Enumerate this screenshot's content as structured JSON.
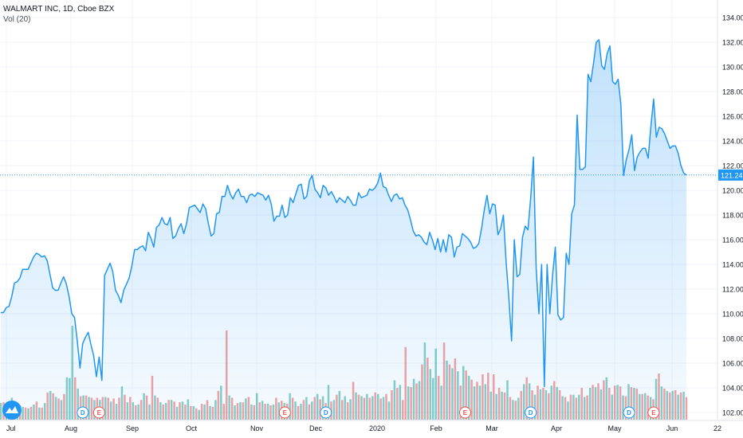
{
  "header": {
    "symbol_line": "WALMART INC, 1D, Cboe BZX",
    "volume_label": "Vol (20)"
  },
  "colors": {
    "line": "#2196f3",
    "area": "#2196f3",
    "vol_up": "#26a69a",
    "vol_down": "#ef5350",
    "grid": "#f0f3fa"
  },
  "chart_data": {
    "type": "area",
    "title": "",
    "ylim": [
      101,
      135
    ],
    "y_ticks": [
      "102.00",
      "104.00",
      "106.00",
      "108.00",
      "110.00",
      "112.00",
      "114.00",
      "116.00",
      "118.00",
      "120.00",
      "122.00",
      "124.00",
      "126.00",
      "128.00",
      "130.00",
      "132.00",
      "134.00"
    ],
    "x_ticks": [
      "Jul",
      "Aug",
      "Sep",
      "Oct",
      "Nov",
      "Dec",
      "2020",
      "Feb",
      "Mar",
      "Apr",
      "May",
      "Jun",
      "22"
    ],
    "last_price": "121.24",
    "price_series": [
      110.1,
      110.1,
      110.5,
      110.6,
      111.4,
      112.5,
      112.6,
      112.9,
      113.6,
      113.6,
      113.6,
      114.1,
      114.6,
      114.9,
      114.8,
      114.6,
      114.7,
      114.3,
      113.2,
      112.1,
      111.9,
      111.9,
      112.5,
      113.0,
      112.4,
      111.4,
      110.0,
      109.7,
      107.8,
      105.6,
      107.6,
      108.1,
      108.5,
      107.5,
      106.6,
      104.9,
      106.5,
      104.6,
      113.1,
      113.6,
      114.1,
      113.4,
      111.9,
      111.5,
      110.9,
      111.9,
      112.4,
      112.9,
      113.9,
      115.2,
      115.2,
      115.4,
      115.5,
      115.1,
      116.6,
      116.1,
      115.4,
      117.0,
      117.2,
      117.8,
      117.3,
      117.2,
      117.8,
      116.1,
      116.3,
      116.9,
      117.3,
      116.5,
      117.3,
      118.6,
      118.7,
      118.8,
      118.5,
      118.2,
      118.9,
      118.5,
      117.3,
      116.3,
      116.5,
      118.1,
      118.2,
      119.5,
      119.5,
      120.4,
      119.7,
      119.3,
      119.8,
      120.1,
      119.5,
      119.5,
      119.0,
      119.6,
      119.7,
      119.5,
      119.8,
      119.7,
      119.6,
      119.2,
      119.6,
      118.9,
      117.5,
      117.9,
      117.9,
      118.8,
      117.8,
      118.0,
      119.4,
      119.0,
      119.7,
      120.4,
      120.5,
      119.3,
      119.5,
      120.8,
      121.2,
      120.1,
      119.8,
      119.4,
      120.4,
      120.2,
      119.6,
      119.9,
      119.5,
      119.0,
      119.4,
      119.2,
      119.0,
      119.5,
      119.2,
      118.8,
      118.8,
      119.8,
      119.4,
      119.5,
      119.6,
      120.1,
      120.0,
      120.2,
      120.6,
      121.4,
      120.3,
      120.2,
      119.6,
      119.1,
      119.6,
      119.7,
      119.3,
      119.4,
      118.8,
      118.4,
      117.6,
      116.7,
      116.3,
      116.4,
      116.2,
      115.8,
      115.6,
      116.6,
      116.0,
      115.2,
      116.1,
      115.0,
      116.0,
      115.0,
      116.4,
      116.2,
      114.6,
      115.4,
      115.5,
      116.5,
      116.3,
      116.1,
      115.8,
      115.3,
      115.4,
      115.7,
      116.9,
      118.4,
      119.6,
      118.1,
      118.9,
      118.8,
      116.4,
      116.9,
      118.0,
      114.2,
      111.3,
      107.8,
      116.0,
      113.0,
      113.2,
      116.2,
      117.1,
      116.8,
      119.4,
      122.7,
      113.7,
      110.0,
      114.0,
      104.1,
      114.0,
      110.0,
      113.1,
      115.4,
      109.9,
      109.5,
      109.7,
      114.9,
      114.0,
      118.1,
      118.8,
      126.1,
      121.7,
      121.7,
      121.9,
      129.4,
      128.8,
      130.3,
      132.0,
      132.2,
      130.1,
      129.8,
      131.1,
      131.7,
      128.8,
      128.6,
      129.0,
      127.0,
      121.2,
      122.5,
      123.3,
      124.5,
      121.6,
      122.7,
      123.1,
      123.4,
      123.4,
      122.6,
      125.2,
      127.4,
      124.3,
      125.1,
      125.0,
      124.6,
      124.0,
      123.4,
      123.6,
      123.6,
      123.0,
      122.0,
      121.4,
      121.24
    ],
    "volume_series": [
      {
        "v": 2.2,
        "up": true
      },
      {
        "v": 2.3,
        "up": false
      },
      {
        "v": 2.0,
        "up": true
      },
      {
        "v": 2.1,
        "up": false
      },
      {
        "v": 2.9,
        "up": true
      },
      {
        "v": 2.4,
        "up": false
      },
      {
        "v": 1.9,
        "up": true
      },
      {
        "v": 1.9,
        "up": false
      },
      {
        "v": 1.7,
        "up": true
      },
      {
        "v": 1.6,
        "up": false
      },
      {
        "v": 1.5,
        "up": true
      },
      {
        "v": 1.7,
        "up": false
      },
      {
        "v": 2.0,
        "up": true
      },
      {
        "v": 2.4,
        "up": false
      },
      {
        "v": 1.6,
        "up": true
      },
      {
        "v": 1.6,
        "up": false
      },
      {
        "v": 2.2,
        "up": true
      },
      {
        "v": 3.6,
        "up": false
      },
      {
        "v": 3.8,
        "up": true
      },
      {
        "v": 3.5,
        "up": false
      },
      {
        "v": 3.0,
        "up": true
      },
      {
        "v": 2.8,
        "up": false
      },
      {
        "v": 2.6,
        "up": true
      },
      {
        "v": 3.4,
        "up": false
      },
      {
        "v": 5.6,
        "up": true
      },
      {
        "v": 5.5,
        "up": true
      },
      {
        "v": 12.4,
        "up": true
      },
      {
        "v": 5.6,
        "up": false
      },
      {
        "v": 4.1,
        "up": true
      },
      {
        "v": 3.1,
        "up": false
      },
      {
        "v": 3.2,
        "up": true
      },
      {
        "v": 3.2,
        "up": false
      },
      {
        "v": 3.0,
        "up": true
      },
      {
        "v": 2.9,
        "up": false
      },
      {
        "v": 2.6,
        "up": true
      },
      {
        "v": 2.9,
        "up": false
      },
      {
        "v": 2.6,
        "up": true
      },
      {
        "v": 3.0,
        "up": false
      },
      {
        "v": 3.0,
        "up": true
      },
      {
        "v": 2.9,
        "up": false
      },
      {
        "v": 2.4,
        "up": true
      },
      {
        "v": 2.8,
        "up": false
      },
      {
        "v": 2.1,
        "up": true
      },
      {
        "v": 2.9,
        "up": false
      },
      {
        "v": 4.4,
        "up": true
      },
      {
        "v": 3.3,
        "up": false
      },
      {
        "v": 2.3,
        "up": true
      },
      {
        "v": 3.0,
        "up": false
      },
      {
        "v": 2.3,
        "up": true
      },
      {
        "v": 1.9,
        "up": false
      },
      {
        "v": 2.0,
        "up": true
      },
      {
        "v": 2.6,
        "up": false
      },
      {
        "v": 3.5,
        "up": true
      },
      {
        "v": 3.2,
        "up": false
      },
      {
        "v": 2.0,
        "up": true
      },
      {
        "v": 5.8,
        "up": false
      },
      {
        "v": 3.2,
        "up": true
      },
      {
        "v": 2.9,
        "up": false
      },
      {
        "v": 2.3,
        "up": true
      },
      {
        "v": 2.0,
        "up": false
      },
      {
        "v": 2.2,
        "up": true
      },
      {
        "v": 2.6,
        "up": false
      },
      {
        "v": 2.6,
        "up": true
      },
      {
        "v": 2.4,
        "up": false
      },
      {
        "v": 1.7,
        "up": true
      },
      {
        "v": 2.3,
        "up": false
      },
      {
        "v": 2.4,
        "up": true
      },
      {
        "v": 2.0,
        "up": false
      },
      {
        "v": 2.7,
        "up": true
      },
      {
        "v": 1.8,
        "up": false
      },
      {
        "v": 1.8,
        "up": true
      },
      {
        "v": 1.5,
        "up": false
      },
      {
        "v": 1.3,
        "up": true
      },
      {
        "v": 2.1,
        "up": false
      },
      {
        "v": 2.0,
        "up": true
      },
      {
        "v": 2.6,
        "up": false
      },
      {
        "v": 1.8,
        "up": true
      },
      {
        "v": 1.7,
        "up": false
      },
      {
        "v": 2.6,
        "up": true
      },
      {
        "v": 3.8,
        "up": false
      },
      {
        "v": 4.5,
        "up": true
      },
      {
        "v": 2.1,
        "up": false
      },
      {
        "v": 11.8,
        "up": false
      },
      {
        "v": 3.2,
        "up": true
      },
      {
        "v": 2.9,
        "up": false
      },
      {
        "v": 1.9,
        "up": true
      },
      {
        "v": 2.2,
        "up": false
      },
      {
        "v": 2.3,
        "up": true
      },
      {
        "v": 2.3,
        "up": false
      },
      {
        "v": 2.8,
        "up": true
      },
      {
        "v": 3.0,
        "up": false
      },
      {
        "v": 2.0,
        "up": true
      },
      {
        "v": 1.9,
        "up": false
      },
      {
        "v": 3.5,
        "up": true
      },
      {
        "v": 2.3,
        "up": false
      },
      {
        "v": 2.5,
        "up": true
      },
      {
        "v": 2.1,
        "up": false
      },
      {
        "v": 2.1,
        "up": true
      },
      {
        "v": 1.9,
        "up": false
      },
      {
        "v": 2.0,
        "up": true
      },
      {
        "v": 2.9,
        "up": false
      },
      {
        "v": 2.3,
        "up": true
      },
      {
        "v": 2.5,
        "up": false
      },
      {
        "v": 2.2,
        "up": true
      },
      {
        "v": 2.1,
        "up": false
      },
      {
        "v": 3.5,
        "up": true
      },
      {
        "v": 2.9,
        "up": false
      },
      {
        "v": 2.4,
        "up": true
      },
      {
        "v": 1.8,
        "up": false
      },
      {
        "v": 2.1,
        "up": true
      },
      {
        "v": 2.6,
        "up": false
      },
      {
        "v": 3.0,
        "up": true
      },
      {
        "v": 2.0,
        "up": false
      },
      {
        "v": 2.4,
        "up": true
      },
      {
        "v": 3.0,
        "up": false
      },
      {
        "v": 3.4,
        "up": true
      },
      {
        "v": 2.7,
        "up": false
      },
      {
        "v": 3.1,
        "up": true
      },
      {
        "v": 2.2,
        "up": false
      },
      {
        "v": 4.6,
        "up": true
      },
      {
        "v": 2.4,
        "up": false
      },
      {
        "v": 2.6,
        "up": true
      },
      {
        "v": 3.3,
        "up": false
      },
      {
        "v": 3.8,
        "up": true
      },
      {
        "v": 2.6,
        "up": false
      },
      {
        "v": 3.1,
        "up": true
      },
      {
        "v": 2.3,
        "up": false
      },
      {
        "v": 2.7,
        "up": true
      },
      {
        "v": 5.0,
        "up": false
      },
      {
        "v": 3.6,
        "up": true
      },
      {
        "v": 3.3,
        "up": false
      },
      {
        "v": 3.1,
        "up": true
      },
      {
        "v": 2.9,
        "up": false
      },
      {
        "v": 3.4,
        "up": true
      },
      {
        "v": 2.9,
        "up": false
      },
      {
        "v": 3.1,
        "up": true
      },
      {
        "v": 3.6,
        "up": false
      },
      {
        "v": 3.4,
        "up": true
      },
      {
        "v": 2.8,
        "up": false
      },
      {
        "v": 3.0,
        "up": true
      },
      {
        "v": 3.4,
        "up": false
      },
      {
        "v": 2.4,
        "up": true
      },
      {
        "v": 3.9,
        "up": false
      },
      {
        "v": 5.2,
        "up": true
      },
      {
        "v": 4.2,
        "up": false
      },
      {
        "v": 4.6,
        "up": true
      },
      {
        "v": 2.6,
        "up": false
      },
      {
        "v": 9.6,
        "up": false
      },
      {
        "v": 4.4,
        "up": true
      },
      {
        "v": 4.3,
        "up": false
      },
      {
        "v": 5.4,
        "up": true
      },
      {
        "v": 4.8,
        "up": false
      },
      {
        "v": 5.1,
        "up": true
      },
      {
        "v": 7.3,
        "up": false
      },
      {
        "v": 10.2,
        "up": true
      },
      {
        "v": 8.2,
        "up": false
      },
      {
        "v": 6.7,
        "up": true
      },
      {
        "v": 5.5,
        "up": true
      },
      {
        "v": 9.4,
        "up": true
      },
      {
        "v": 5.8,
        "up": false
      },
      {
        "v": 4.5,
        "up": true
      },
      {
        "v": 10.2,
        "up": false
      },
      {
        "v": 7.8,
        "up": true
      },
      {
        "v": 7.3,
        "up": false
      },
      {
        "v": 6.8,
        "up": true
      },
      {
        "v": 8.1,
        "up": false
      },
      {
        "v": 6.4,
        "up": true
      },
      {
        "v": 4.5,
        "up": false
      },
      {
        "v": 7.1,
        "up": true
      },
      {
        "v": 6.5,
        "up": false
      },
      {
        "v": 5.8,
        "up": true
      },
      {
        "v": 5.3,
        "up": false
      },
      {
        "v": 4.4,
        "up": true
      },
      {
        "v": 5.0,
        "up": false
      },
      {
        "v": 4.5,
        "up": true
      },
      {
        "v": 6.0,
        "up": false
      },
      {
        "v": 4.7,
        "up": true
      },
      {
        "v": 6.2,
        "up": false
      },
      {
        "v": 3.7,
        "up": true
      },
      {
        "v": 6.0,
        "up": false
      },
      {
        "v": 3.4,
        "up": true
      },
      {
        "v": 4.2,
        "up": false
      },
      {
        "v": 3.7,
        "up": true
      },
      {
        "v": 3.6,
        "up": false
      },
      {
        "v": 5.2,
        "up": true
      },
      {
        "v": 3.0,
        "up": false
      },
      {
        "v": 2.6,
        "up": true
      },
      {
        "v": 2.5,
        "up": false
      },
      {
        "v": 2.9,
        "up": true
      },
      {
        "v": 3.8,
        "up": false
      },
      {
        "v": 4.7,
        "up": true
      },
      {
        "v": 5.6,
        "up": false
      },
      {
        "v": 4.8,
        "up": true
      },
      {
        "v": 3.9,
        "up": false
      },
      {
        "v": 3.3,
        "up": true
      },
      {
        "v": 4.5,
        "up": false
      },
      {
        "v": 4.0,
        "up": true
      },
      {
        "v": 4.2,
        "up": false
      },
      {
        "v": 3.9,
        "up": true
      },
      {
        "v": 3.5,
        "up": false
      },
      {
        "v": 4.5,
        "up": true
      },
      {
        "v": 5.1,
        "up": false
      },
      {
        "v": 4.3,
        "up": true
      },
      {
        "v": 3.9,
        "up": false
      },
      {
        "v": 3.1,
        "up": true
      },
      {
        "v": 3.0,
        "up": false
      },
      {
        "v": 2.4,
        "up": true
      },
      {
        "v": 3.3,
        "up": false
      },
      {
        "v": 3.3,
        "up": true
      },
      {
        "v": 2.9,
        "up": false
      },
      {
        "v": 3.3,
        "up": true
      },
      {
        "v": 4.2,
        "up": false
      },
      {
        "v": 3.0,
        "up": true
      },
      {
        "v": 3.2,
        "up": false
      },
      {
        "v": 4.2,
        "up": true
      },
      {
        "v": 4.6,
        "up": false
      },
      {
        "v": 4.3,
        "up": true
      },
      {
        "v": 4.8,
        "up": false
      },
      {
        "v": 4.0,
        "up": true
      },
      {
        "v": 5.2,
        "up": false
      },
      {
        "v": 5.6,
        "up": true
      },
      {
        "v": 4.2,
        "up": false
      },
      {
        "v": 3.3,
        "up": true
      },
      {
        "v": 4.5,
        "up": false
      },
      {
        "v": 4.6,
        "up": true
      },
      {
        "v": 4.4,
        "up": false
      },
      {
        "v": 3.2,
        "up": true
      },
      {
        "v": 3.1,
        "up": false
      },
      {
        "v": 4.7,
        "up": true
      },
      {
        "v": 4.3,
        "up": false
      },
      {
        "v": 4.2,
        "up": true
      },
      {
        "v": 4.1,
        "up": false
      },
      {
        "v": 3.4,
        "up": true
      },
      {
        "v": 3.4,
        "up": false
      },
      {
        "v": 3.5,
        "up": true
      },
      {
        "v": 3.2,
        "up": false
      },
      {
        "v": 3.0,
        "up": true
      },
      {
        "v": 2.7,
        "up": false
      },
      {
        "v": 5.4,
        "up": true
      },
      {
        "v": 6.1,
        "up": false
      },
      {
        "v": 4.4,
        "up": true
      },
      {
        "v": 4.1,
        "up": false
      },
      {
        "v": 3.8,
        "up": true
      },
      {
        "v": 3.6,
        "up": false
      },
      {
        "v": 3.8,
        "up": true
      },
      {
        "v": 3.9,
        "up": false
      },
      {
        "v": 3.3,
        "up": true
      },
      {
        "v": 3.6,
        "up": false
      },
      {
        "v": 3.7,
        "up": true
      },
      {
        "v": 3.0,
        "up": false
      }
    ],
    "events": [
      {
        "label": "D",
        "type": "dividend",
        "index": 30
      },
      {
        "label": "E",
        "type": "earnings",
        "index": 36
      },
      {
        "label": "E",
        "type": "earnings",
        "index": 104
      },
      {
        "label": "D",
        "type": "dividend",
        "index": 119
      },
      {
        "label": "E",
        "type": "earnings",
        "index": 170
      },
      {
        "label": "D",
        "type": "dividend",
        "index": 194
      },
      {
        "label": "D",
        "type": "dividend",
        "index": 230
      },
      {
        "label": "E",
        "type": "earnings",
        "index": 239
      }
    ]
  }
}
